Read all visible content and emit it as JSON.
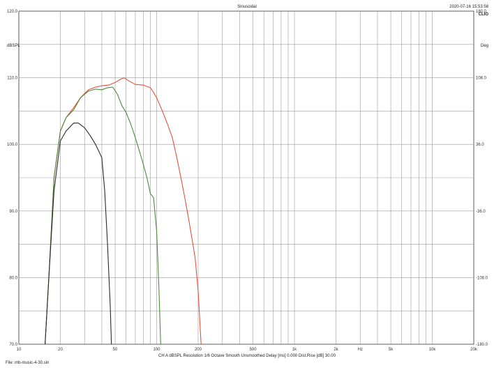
{
  "header": {
    "title": "Sinusoidal",
    "timestamp": "2020-07-16 15:53:58",
    "brand": "CLIO"
  },
  "footer": {
    "settings": "CH A   dBSPL   Resolution 1/6 Octave   Smooth Unsmoothed   Delay [ms] 0.000   Dist.Rise [dB] 30.00",
    "file": "File: mb-music-4-30.sin"
  },
  "chart_data": {
    "type": "line",
    "title": "Sinusoidal",
    "xscale": "log",
    "xlim": [
      10,
      20000
    ],
    "ylim": [
      70,
      120
    ],
    "y2lim": [
      -180,
      180
    ],
    "ylabel": "dBSPL",
    "y2label": "Deg",
    "xlabel": "Hz",
    "grid": true,
    "x_ticks": [
      10,
      20,
      50,
      100,
      200,
      500,
      1000,
      2000,
      5000,
      10000,
      20000
    ],
    "x_tick_labels": [
      "10",
      "20",
      "50",
      "100",
      "200",
      "500",
      "1k",
      "2k",
      "5k",
      "10k",
      "20k"
    ],
    "y_tick_labels": [
      "70.0",
      "80.0",
      "90.0",
      "100.0",
      "110.0",
      "120.0"
    ],
    "y2_tick_labels": [
      "-180.0",
      "-108.0",
      "-36.0",
      "36.0",
      "108.0",
      "180.0"
    ],
    "series": [
      {
        "color": "#e8503a",
        "x": [
          15.5,
          16.5,
          18,
          20,
          22,
          25,
          28,
          32,
          36,
          40,
          45,
          50,
          55,
          58,
          62,
          70,
          80,
          90,
          95,
          100,
          110,
          120,
          130,
          140,
          150,
          160,
          170,
          180,
          190,
          200,
          205,
          210
        ],
        "y": [
          70,
          80,
          95,
          102,
          104,
          105.5,
          107,
          108.2,
          108.6,
          108.8,
          108.9,
          109.3,
          109.8,
          110.0,
          109.6,
          109.0,
          108.9,
          108.5,
          107.8,
          107,
          105,
          103,
          101,
          98,
          95,
          92,
          89,
          86,
          83,
          78,
          74,
          70
        ]
      },
      {
        "color": "#4e8a3c",
        "x": [
          15.5,
          16.5,
          18,
          20,
          22,
          25,
          28,
          32,
          36,
          40,
          44,
          48,
          52,
          56,
          60,
          65,
          70,
          75,
          80,
          85,
          90,
          95,
          100,
          104,
          107
        ],
        "y": [
          70,
          80,
          95,
          102,
          104,
          105.2,
          107,
          108.0,
          108.3,
          108.2,
          108.5,
          108.6,
          107.5,
          105.8,
          104.8,
          103,
          101,
          99,
          97,
          95,
          92.6,
          92,
          87,
          78,
          70
        ]
      },
      {
        "color": "#2a2a2a",
        "x": [
          15.5,
          16.5,
          18,
          20,
          22,
          25,
          27,
          30,
          33,
          36,
          38,
          40,
          42,
          44,
          46,
          47
        ],
        "y": [
          70,
          80,
          93,
          100.5,
          102,
          103.2,
          103.2,
          102.5,
          101.3,
          100,
          99,
          98,
          93,
          85,
          76,
          70
        ]
      }
    ]
  }
}
